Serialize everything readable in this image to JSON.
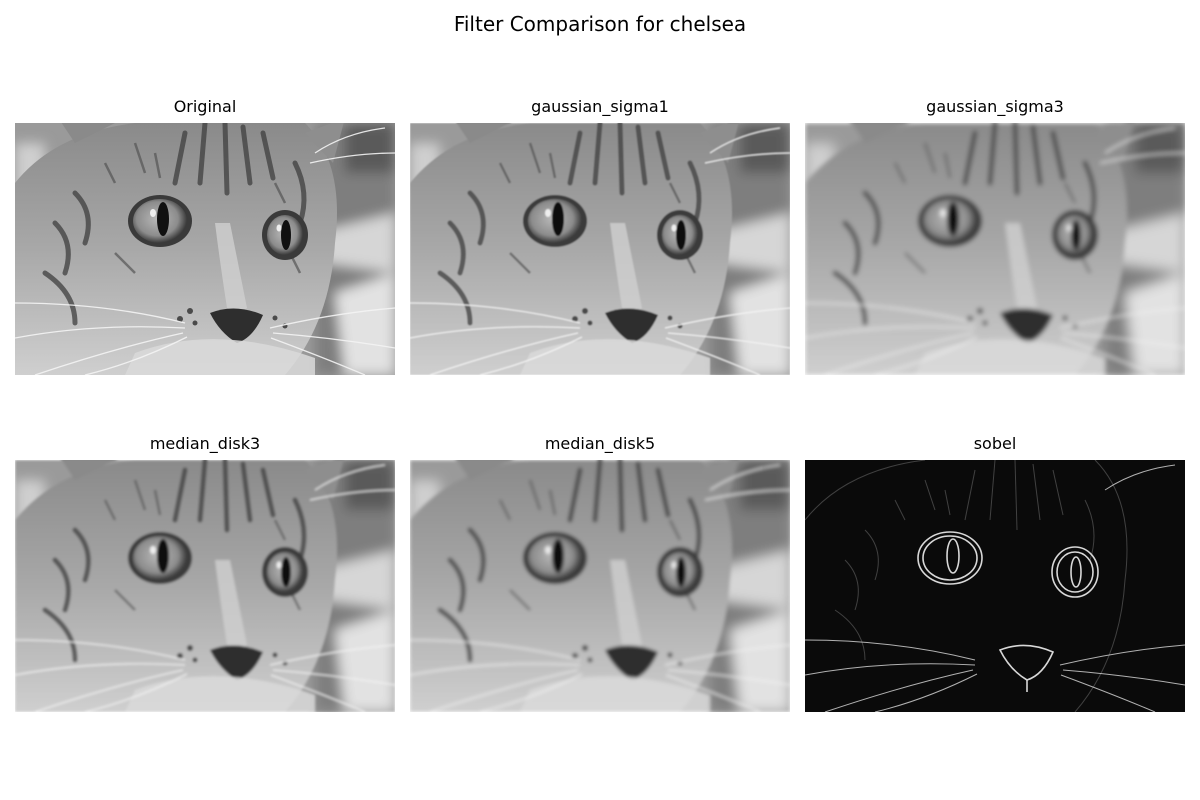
{
  "figure": {
    "title": "Filter Comparison for chelsea"
  },
  "panels": [
    {
      "title": "Original",
      "filter": "none"
    },
    {
      "title": "gaussian_sigma1",
      "filter": "gaussian"
    },
    {
      "title": "gaussian_sigma3",
      "filter": "gaussian"
    },
    {
      "title": "median_disk3",
      "filter": "median"
    },
    {
      "title": "median_disk5",
      "filter": "median"
    },
    {
      "title": "sobel",
      "filter": "sobel"
    }
  ],
  "colors": {
    "background": "#ffffff",
    "text": "#000000",
    "sobel_background": "#0a0a0a"
  }
}
